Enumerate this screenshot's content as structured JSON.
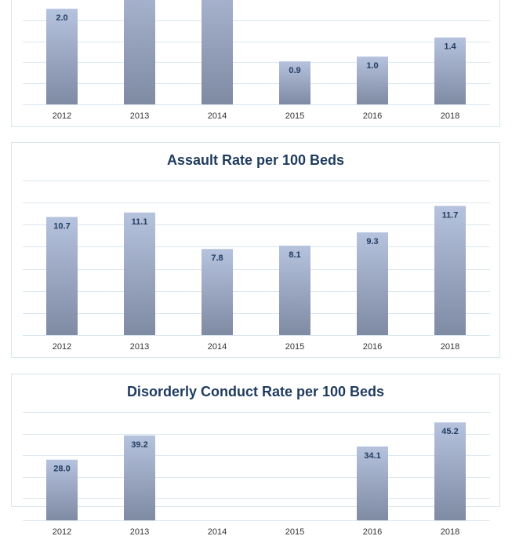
{
  "colors": {
    "grid": "#dbe7ee",
    "bar_top": "#b6c3de",
    "bar_bottom": "#7f8aa3",
    "label": "#1f3b5f"
  },
  "chart_data": [
    {
      "type": "bar",
      "title": "",
      "categories": [
        "2012",
        "2013",
        "2014",
        "2015",
        "2016",
        "2018"
      ],
      "values": [
        2.0,
        null,
        null,
        0.9,
        1.0,
        1.4
      ],
      "data_labels": [
        "2.0",
        "",
        "",
        "0.9",
        "1.0",
        "1.4"
      ],
      "ylim": [
        0,
        2.2
      ],
      "grid": true
    },
    {
      "type": "bar",
      "title": "Assault Rate per 100 Beds",
      "categories": [
        "2012",
        "2013",
        "2014",
        "2015",
        "2016",
        "2018"
      ],
      "values": [
        10.7,
        11.1,
        7.8,
        8.1,
        9.3,
        11.7
      ],
      "data_labels": [
        "10.7",
        "11.1",
        "7.8",
        "8.1",
        "9.3",
        "11.7"
      ],
      "ylim": [
        0,
        14
      ],
      "grid": true
    },
    {
      "type": "bar",
      "title": "Disorderly Conduct Rate per 100 Beds",
      "categories": [
        "2012",
        "2013",
        "2014",
        "2015",
        "2016",
        "2018"
      ],
      "values": [
        28.0,
        39.2,
        null,
        null,
        34.1,
        45.2
      ],
      "data_labels": [
        "28.0",
        "39.2",
        "",
        "",
        "34.1",
        "45.2"
      ],
      "ylim": [
        0,
        50
      ],
      "grid": true
    }
  ]
}
